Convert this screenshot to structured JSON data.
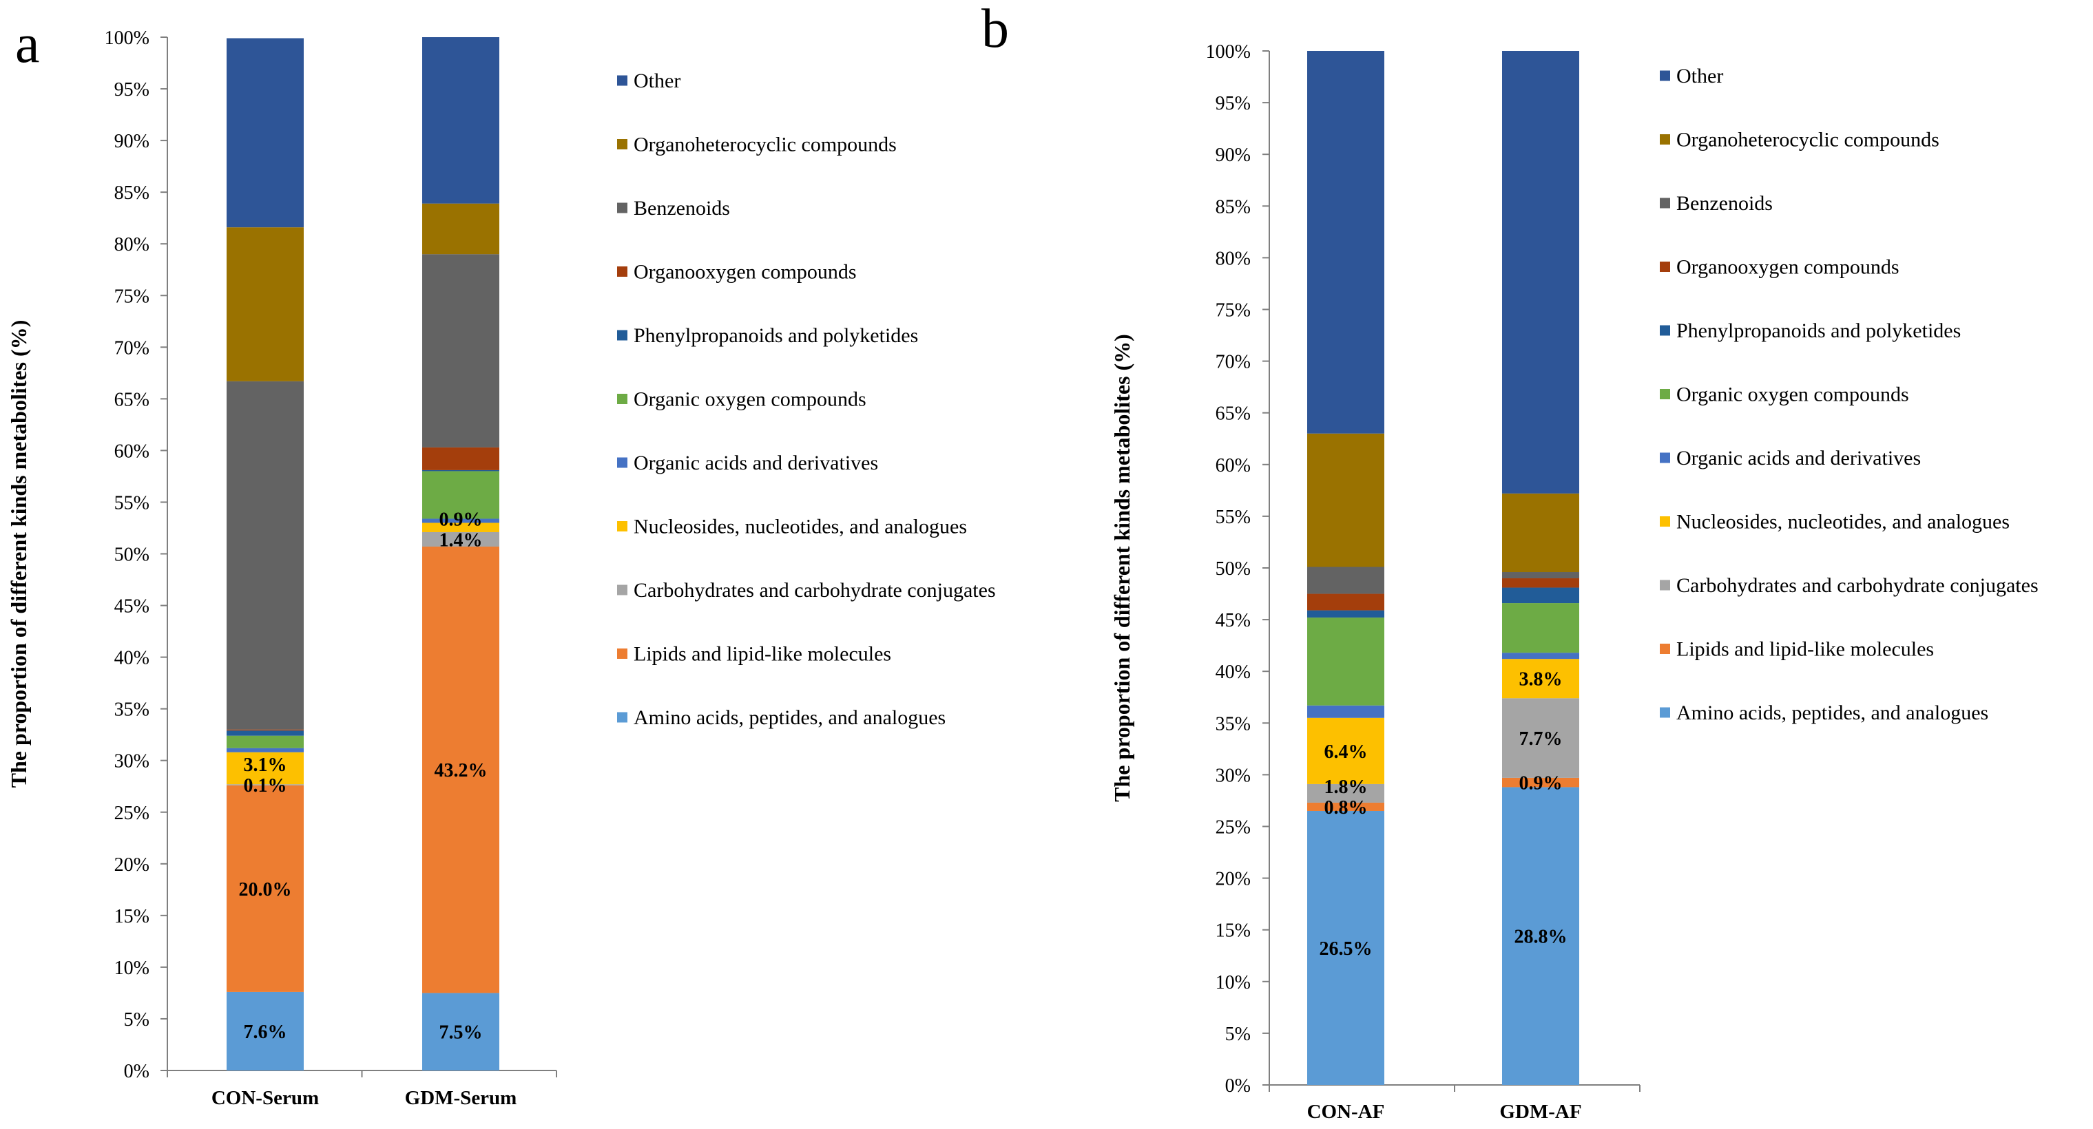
{
  "colors": {
    "Other": "#2E5597",
    "Organoheterocyclic compounds": "#9A7200",
    "Benzenoids": "#636363",
    "Organooxygen compounds": "#A43E0C",
    "Phenylpropanoids and polyketides": "#215C98",
    "Organic oxygen compounds": "#6DAB45",
    "Organic acids and derivatives": "#4572C4",
    "Nucleosides, nucleotides, and analogues": "#FDC000",
    "Carbohydrates and carbohydrate conjugates": "#A5A5A5",
    "Lipids and lipid-like molecules": "#ED7D31",
    "Amino acids, peptides, and analogues": "#5B9BD5"
  },
  "chart_data": [
    {
      "panel_label": "a",
      "type": "bar",
      "stacked": true,
      "ylabel": "The proportion of different kinds metabolites (%)",
      "ylim": [
        0,
        100
      ],
      "yticks": [
        "0%",
        "5%",
        "10%",
        "15%",
        "20%",
        "25%",
        "30%",
        "35%",
        "40%",
        "45%",
        "50%",
        "55%",
        "60%",
        "65%",
        "70%",
        "75%",
        "80%",
        "85%",
        "90%",
        "95%",
        "100%"
      ],
      "categories": [
        "CON-Serum",
        "GDM-Serum"
      ],
      "legend": [
        "Other",
        "Organoheterocyclic compounds",
        "Benzenoids",
        "Organooxygen compounds",
        "Phenylpropanoids and polyketides",
        "Organic oxygen compounds",
        "Organic acids and derivatives",
        "Nucleosides, nucleotides, and analogues",
        "Carbohydrates and carbohydrate conjugates",
        "Lipids and lipid-like molecules",
        "Amino acids, peptides, and analogues"
      ],
      "series": [
        {
          "name": "Amino acids, peptides, and analogues",
          "values": [
            7.6,
            7.5
          ],
          "labels": [
            "7.6%",
            "7.5%"
          ]
        },
        {
          "name": "Lipids and lipid-like molecules",
          "values": [
            20.0,
            43.2
          ],
          "labels": [
            "20.0%",
            "43.2%"
          ]
        },
        {
          "name": "Carbohydrates and carbohydrate conjugates",
          "values": [
            0.1,
            1.4
          ],
          "labels": [
            "0.1%",
            "1.4%"
          ]
        },
        {
          "name": "Nucleosides, nucleotides, and analogues",
          "values": [
            3.1,
            0.9
          ],
          "labels": [
            "3.1%",
            "0.9%"
          ]
        },
        {
          "name": "Organic acids and derivatives",
          "values": [
            0.4,
            0.4
          ],
          "labels": [
            "",
            ""
          ]
        },
        {
          "name": "Organic oxygen compounds",
          "values": [
            1.2,
            4.6
          ],
          "labels": [
            "",
            ""
          ]
        },
        {
          "name": "Phenylpropanoids and polyketides",
          "values": [
            0.5,
            0.1
          ],
          "labels": [
            "",
            ""
          ]
        },
        {
          "name": "Organooxygen compounds",
          "values": [
            0.1,
            2.2
          ],
          "labels": [
            "",
            ""
          ]
        },
        {
          "name": "Benzenoids",
          "values": [
            33.7,
            18.7
          ],
          "labels": [
            "",
            ""
          ]
        },
        {
          "name": "Organoheterocyclic compounds",
          "values": [
            14.9,
            4.9
          ],
          "labels": [
            "",
            ""
          ]
        },
        {
          "name": "Other",
          "values": [
            18.3,
            16.1
          ],
          "labels": [
            "",
            ""
          ]
        }
      ]
    },
    {
      "panel_label": "b",
      "type": "bar",
      "stacked": true,
      "ylabel": "The proportion of different kinds metabolites (%)",
      "ylim": [
        0,
        100
      ],
      "yticks": [
        "0%",
        "5%",
        "10%",
        "15%",
        "20%",
        "25%",
        "30%",
        "35%",
        "40%",
        "45%",
        "50%",
        "55%",
        "60%",
        "65%",
        "70%",
        "75%",
        "80%",
        "85%",
        "90%",
        "95%",
        "100%"
      ],
      "categories": [
        "CON-AF",
        "GDM-AF"
      ],
      "legend": [
        "Other",
        "Organoheterocyclic compounds",
        "Benzenoids",
        "Organooxygen compounds",
        "Phenylpropanoids and polyketides",
        "Organic oxygen compounds",
        "Organic acids and derivatives",
        "Nucleosides, nucleotides, and analogues",
        "Carbohydrates and carbohydrate conjugates",
        "Lipids and lipid-like molecules",
        "Amino acids, peptides, and analogues"
      ],
      "series": [
        {
          "name": "Amino acids, peptides, and analogues",
          "values": [
            26.5,
            28.8
          ],
          "labels": [
            "26.5%",
            "28.8%"
          ]
        },
        {
          "name": "Lipids and lipid-like molecules",
          "values": [
            0.8,
            0.9
          ],
          "labels": [
            "0.8%",
            "0.9%"
          ]
        },
        {
          "name": "Carbohydrates and carbohydrate conjugates",
          "values": [
            1.8,
            7.7
          ],
          "labels": [
            "1.8%",
            "7.7%"
          ]
        },
        {
          "name": "Nucleosides, nucleotides, and analogues",
          "values": [
            6.4,
            3.8
          ],
          "labels": [
            "6.4%",
            "3.8%"
          ]
        },
        {
          "name": "Organic acids and derivatives",
          "values": [
            1.2,
            0.6
          ],
          "labels": [
            "",
            ""
          ]
        },
        {
          "name": "Organic oxygen compounds",
          "values": [
            8.5,
            4.8
          ],
          "labels": [
            "",
            ""
          ]
        },
        {
          "name": "Phenylpropanoids and polyketides",
          "values": [
            0.7,
            1.5
          ],
          "labels": [
            "",
            ""
          ]
        },
        {
          "name": "Organooxygen compounds",
          "values": [
            1.6,
            0.9
          ],
          "labels": [
            "",
            ""
          ]
        },
        {
          "name": "Benzenoids",
          "values": [
            2.6,
            0.6
          ],
          "labels": [
            "",
            ""
          ]
        },
        {
          "name": "Organoheterocyclic compounds",
          "values": [
            12.9,
            7.6
          ],
          "labels": [
            "",
            ""
          ]
        },
        {
          "name": "Other",
          "values": [
            37.0,
            42.8
          ],
          "labels": [
            "",
            ""
          ]
        }
      ]
    }
  ]
}
